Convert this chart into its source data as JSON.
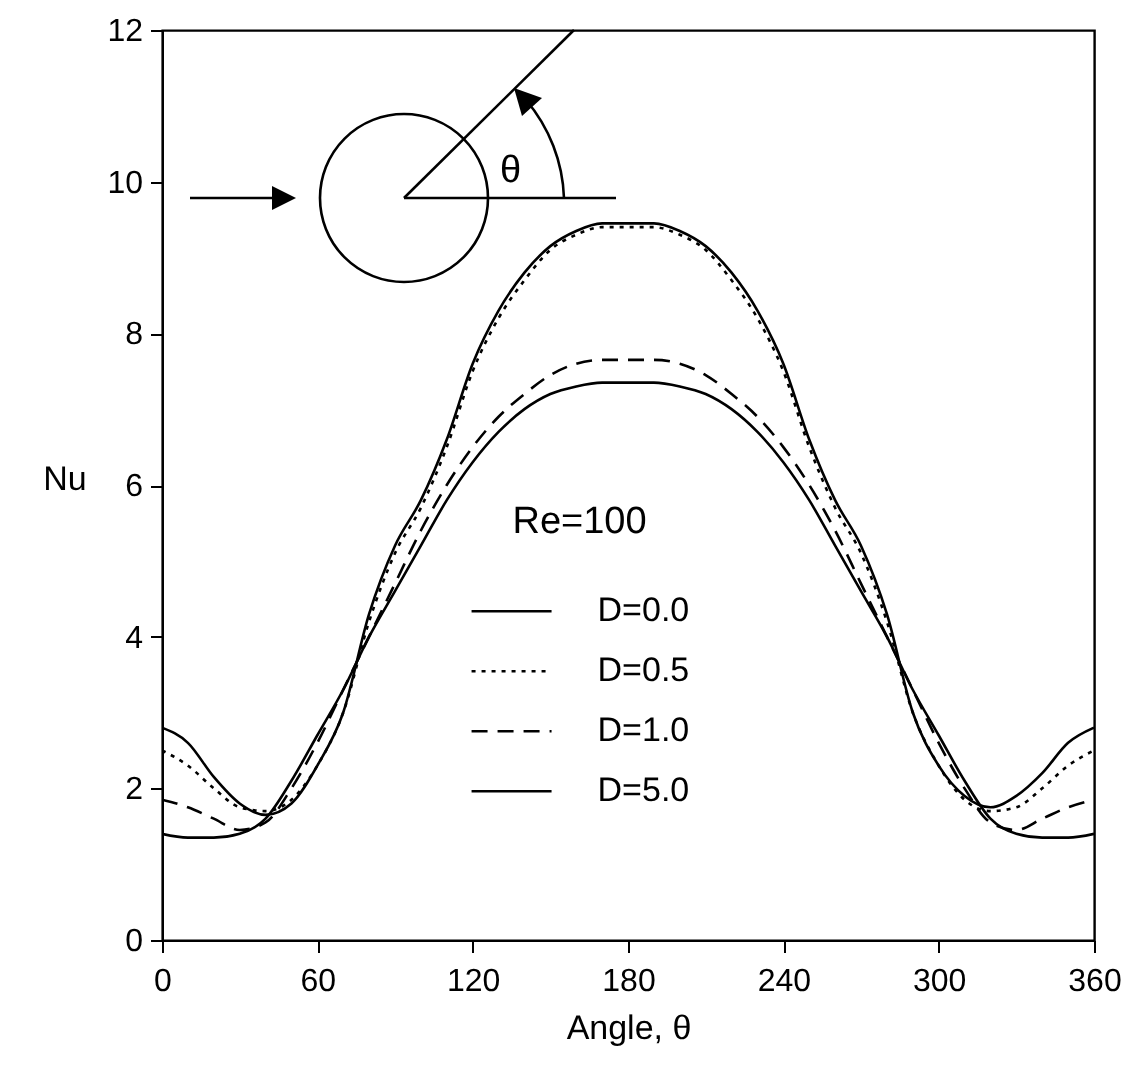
{
  "chart_data": {
    "type": "line",
    "xlabel": "Angle, θ",
    "ylabel": "Nu",
    "legend_title": "Re=100",
    "annotations": [
      "θ"
    ],
    "x": [
      0,
      10,
      20,
      30,
      40,
      50,
      60,
      70,
      80,
      90,
      100,
      110,
      120,
      130,
      140,
      150,
      160,
      170,
      180,
      190,
      200,
      210,
      220,
      230,
      240,
      250,
      260,
      270,
      280,
      290,
      300,
      310,
      320,
      330,
      340,
      350,
      360
    ],
    "xlim": [
      0,
      360
    ],
    "xticks": [
      0,
      60,
      120,
      180,
      240,
      300,
      360
    ],
    "ylim": [
      0,
      12
    ],
    "yticks": [
      0,
      2,
      4,
      6,
      8,
      10,
      12
    ],
    "legend": "bottom",
    "grid": false,
    "marker": "none",
    "series": [
      {
        "name": "D=0.0",
        "color": "#000000",
        "line_style": "solid",
        "values": [
          2.8,
          2.6,
          2.15,
          1.8,
          1.65,
          1.8,
          2.3,
          3.0,
          4.3,
          5.2,
          5.8,
          6.6,
          7.6,
          8.3,
          8.8,
          9.15,
          9.35,
          9.45,
          9.45,
          9.45,
          9.35,
          9.15,
          8.8,
          8.3,
          7.6,
          6.6,
          5.8,
          5.2,
          4.3,
          3.0,
          2.3,
          1.9,
          1.75,
          1.9,
          2.2,
          2.6,
          2.8
        ]
      },
      {
        "name": "D=0.5",
        "color": "#000000",
        "line_style": "dotted",
        "values": [
          2.5,
          2.3,
          2.0,
          1.75,
          1.7,
          1.85,
          2.3,
          3.0,
          4.2,
          5.1,
          5.7,
          6.5,
          7.5,
          8.2,
          8.7,
          9.1,
          9.3,
          9.4,
          9.4,
          9.4,
          9.3,
          9.1,
          8.7,
          8.2,
          7.5,
          6.5,
          5.7,
          5.1,
          4.2,
          3.0,
          2.3,
          1.85,
          1.7,
          1.75,
          2.0,
          2.3,
          2.5
        ]
      },
      {
        "name": "D=1.0",
        "color": "#000000",
        "line_style": "dashed",
        "values": [
          1.85,
          1.75,
          1.6,
          1.45,
          1.55,
          2.0,
          2.6,
          3.3,
          4.0,
          4.7,
          5.4,
          6.0,
          6.5,
          6.9,
          7.2,
          7.45,
          7.6,
          7.65,
          7.65,
          7.65,
          7.6,
          7.45,
          7.2,
          6.9,
          6.5,
          6.0,
          5.4,
          4.7,
          4.0,
          3.3,
          2.6,
          2.0,
          1.55,
          1.45,
          1.6,
          1.75,
          1.85
        ]
      },
      {
        "name": "D=5.0",
        "color": "#000000",
        "line_style": "solid",
        "values": [
          1.4,
          1.35,
          1.35,
          1.4,
          1.6,
          2.1,
          2.7,
          3.3,
          4.0,
          4.6,
          5.2,
          5.8,
          6.3,
          6.7,
          7.0,
          7.2,
          7.3,
          7.35,
          7.35,
          7.35,
          7.3,
          7.2,
          7.0,
          6.7,
          6.3,
          5.8,
          5.2,
          4.6,
          4.0,
          3.3,
          2.7,
          2.1,
          1.6,
          1.4,
          1.35,
          1.35,
          1.4
        ]
      }
    ]
  }
}
